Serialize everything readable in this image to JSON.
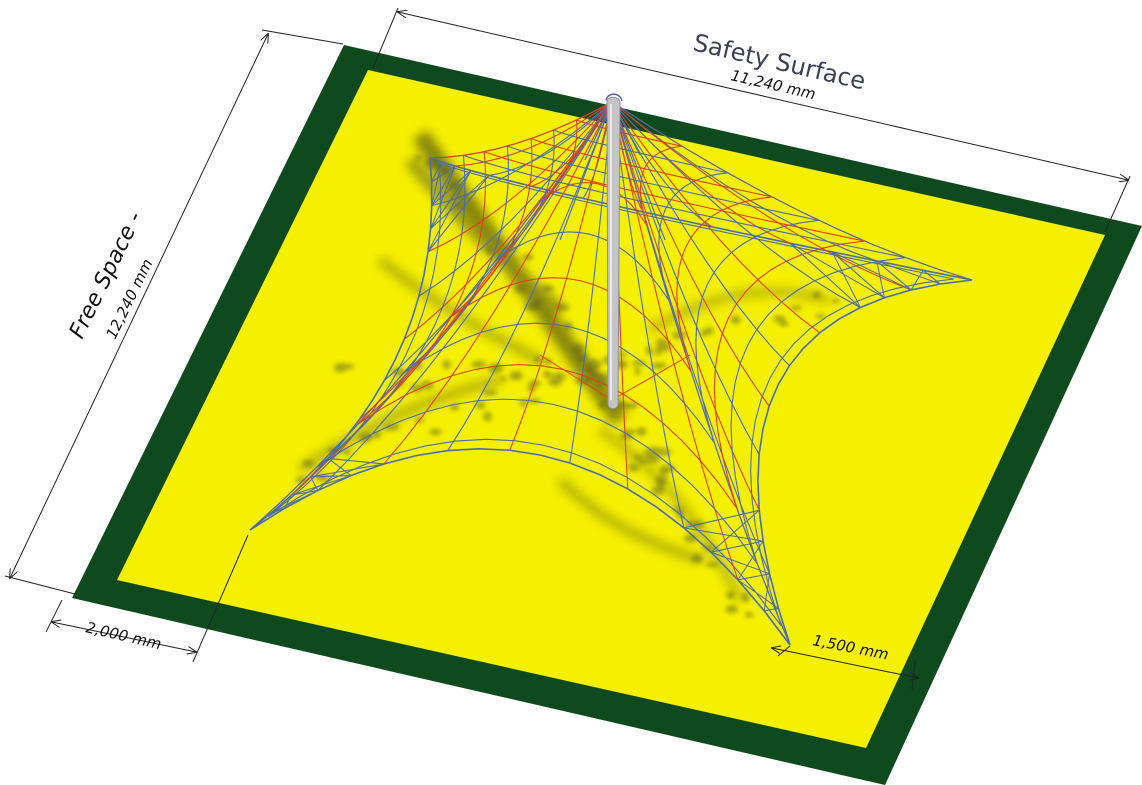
{
  "labels": {
    "safety_surface": "Safety Surface",
    "width_dim": "11,240 mm",
    "free_space": "Free Space -",
    "depth_dim": "12,240 mm",
    "left_offset": "2,000 mm",
    "right_offset": "1,500 mm"
  },
  "colors": {
    "border": "#0f4a1f",
    "surface": "#f5f000",
    "net_blue": "#4a6db0",
    "net_red": "#e0401c",
    "mast": "#b8b8b8",
    "shadow": "#3d4020",
    "dimension": "#222222",
    "title": "#3a3f55"
  }
}
